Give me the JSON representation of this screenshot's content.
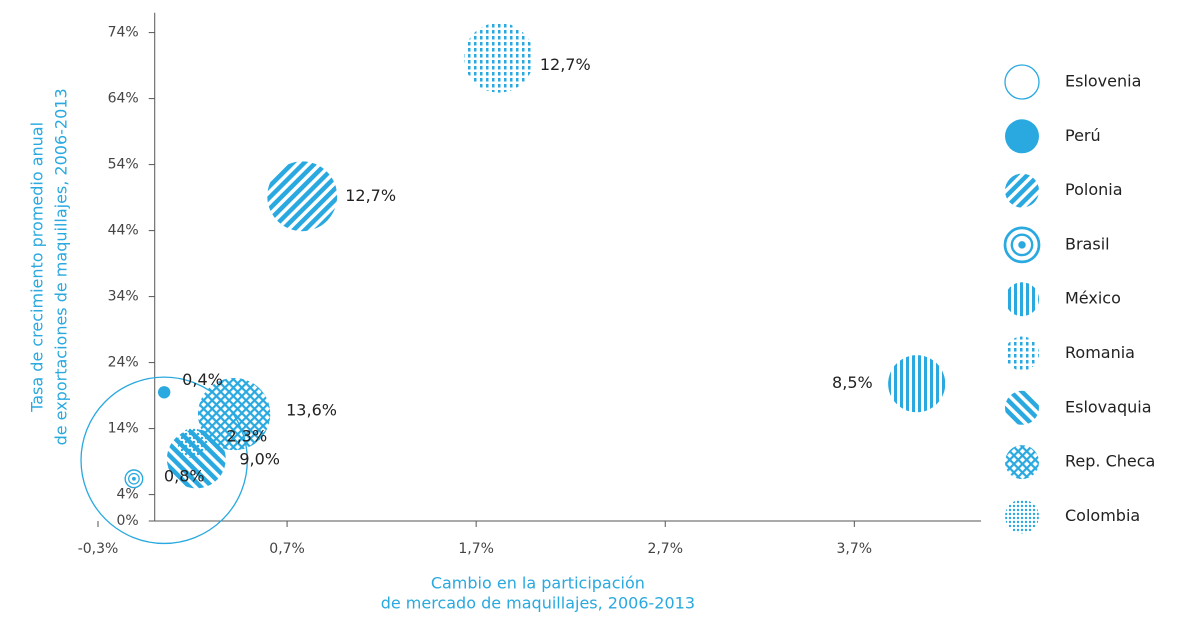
{
  "chart_data": {
    "type": "bubble",
    "x_label": [
      "Cambio en la participación",
      "de mercado de maquillajes, 2006-2013"
    ],
    "y_label": [
      "Tasa de crecimiento promedio anual",
      "de exportaciones de maquillajes, 2006-2013"
    ],
    "xlim": [
      -0.3,
      4.37
    ],
    "ylim": [
      0,
      77
    ],
    "xticks": [
      {
        "value": -0.3,
        "label": "-0,3%"
      },
      {
        "value": 0.7,
        "label": "0,7%"
      },
      {
        "value": 1.7,
        "label": "1,7%"
      },
      {
        "value": 2.7,
        "label": "2,7%"
      },
      {
        "value": 3.7,
        "label": "3,7%"
      }
    ],
    "yticks": [
      {
        "value": 0,
        "label": "0%"
      },
      {
        "value": 4,
        "label": "4%"
      },
      {
        "value": 14,
        "label": "14%"
      },
      {
        "value": 24,
        "label": "24%"
      },
      {
        "value": 34,
        "label": "34%"
      },
      {
        "value": 44,
        "label": "44%"
      },
      {
        "value": 54,
        "label": "54%"
      },
      {
        "value": 64,
        "label": "64%"
      },
      {
        "value": 74,
        "label": "74%"
      }
    ],
    "series": [
      {
        "name": "Eslovenia",
        "color": "#29a9df",
        "pattern": "outline",
        "x": 0.05,
        "y": 9.2,
        "size": 72
      },
      {
        "name": "Perú",
        "color": "#29a9df",
        "pattern": "solid",
        "x": 0.05,
        "y": 19.5,
        "size": 0.4,
        "value_label": "0,4%"
      },
      {
        "name": "Polonia",
        "color": "#29a9df",
        "pattern": "diagonal-down",
        "x": 0.78,
        "y": 49.2,
        "size": 12.7,
        "value_label": "12,7%"
      },
      {
        "name": "Brasil",
        "color": "#29a9df",
        "pattern": "concentric",
        "x": -0.11,
        "y": 6.4,
        "size": 0.8,
        "value_label": "0,8%"
      },
      {
        "name": "México",
        "color": "#29a9df",
        "pattern": "vertical",
        "x": 4.03,
        "y": 20.8,
        "size": 8.5,
        "value_label": "8,5%"
      },
      {
        "name": "Romania",
        "color": "#29a9df",
        "pattern": "dashed",
        "x": 1.82,
        "y": 70.2,
        "size": 12.7,
        "value_label": "12,7%"
      },
      {
        "name": "Eslovaquia",
        "color": "#29a9df",
        "pattern": "diagonal-up",
        "x": 0.22,
        "y": 9.4,
        "size": 9.0,
        "value_label": "9,0%"
      },
      {
        "name": "Rep. Checa",
        "color": "#29a9df",
        "pattern": "crosshatch",
        "x": 0.42,
        "y": 16.2,
        "size": 13.6,
        "value_label": "13,6%"
      },
      {
        "name": "Colombia",
        "color": "#29a9df",
        "pattern": "dots",
        "x": 0.2,
        "y": 11.8,
        "size": 2.3,
        "value_label": "2,3%"
      }
    ],
    "legend": "right"
  }
}
